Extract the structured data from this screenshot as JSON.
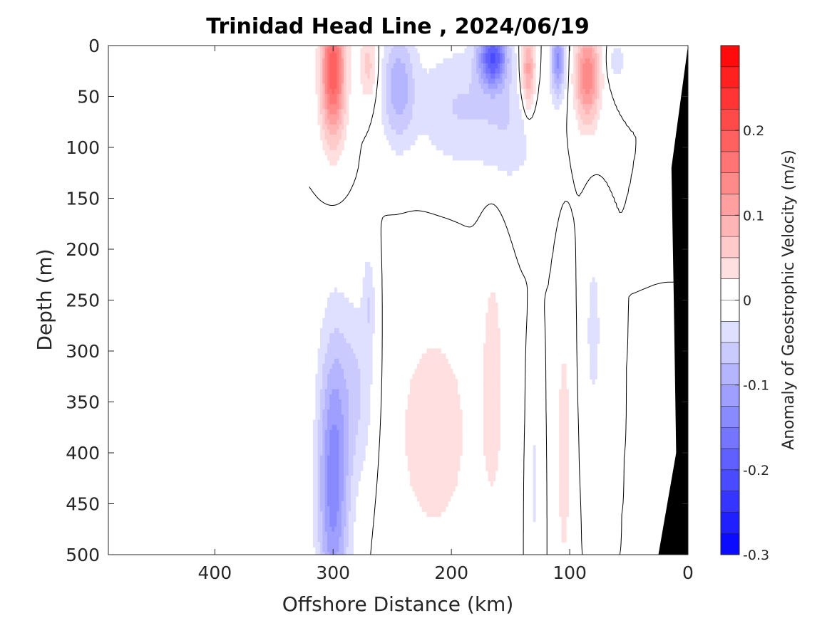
{
  "chart_data": {
    "type": "heatmap",
    "title": "Trinidad Head Line , 2024/06/19",
    "xlabel": "Offshore Distance (km)",
    "ylabel": "Depth (m)",
    "colorbar_label": "Anomaly of Geostrophic Velocity (m/s)",
    "xlim": [
      490,
      0
    ],
    "ylim": [
      500,
      0
    ],
    "x_ticks": [
      400,
      300,
      200,
      100,
      0
    ],
    "x_tick_labels": [
      "400",
      "300",
      "200",
      "100",
      "0"
    ],
    "y_ticks": [
      0,
      50,
      100,
      150,
      200,
      250,
      300,
      350,
      400,
      450,
      500
    ],
    "y_tick_labels": [
      "0",
      "50",
      "100",
      "150",
      "200",
      "250",
      "300",
      "350",
      "400",
      "450",
      "500"
    ],
    "clim": [
      -0.3,
      0.3
    ],
    "colorbar_ticks": [
      0.2,
      0.1,
      0,
      -0.1,
      -0.2,
      -0.3
    ],
    "colorbar_tick_labels": [
      "0.2",
      "0.1",
      "0",
      "-0.1",
      "-0.2",
      "-0.3"
    ],
    "colorbar_levels": 24,
    "colormap": {
      "negative": "#0000ff",
      "zero": "#ffffff",
      "positive": "#ff0000"
    },
    "data_coverage_km": [
      0,
      320
    ],
    "bathymetry_color": "#000000",
    "bathymetry": [
      [
        25,
        500
      ],
      [
        10,
        400
      ],
      [
        12,
        250
      ],
      [
        14,
        120
      ],
      [
        7,
        60
      ],
      [
        0,
        0
      ]
    ],
    "features": [
      {
        "x": 300,
        "z": 25,
        "amp": 0.2,
        "sx": 10,
        "sz": 65
      },
      {
        "x": 270,
        "z": 20,
        "amp": 0.06,
        "sx": 8,
        "sz": 35
      },
      {
        "x": 245,
        "z": 40,
        "amp": -0.09,
        "sx": 14,
        "sz": 55
      },
      {
        "x": 195,
        "z": 60,
        "amp": -0.05,
        "sx": 35,
        "sz": 60
      },
      {
        "x": 165,
        "z": 10,
        "amp": -0.19,
        "sx": 12,
        "sz": 30
      },
      {
        "x": 150,
        "z": 80,
        "amp": -0.04,
        "sx": 25,
        "sz": 60
      },
      {
        "x": 135,
        "z": 25,
        "amp": 0.12,
        "sx": 6,
        "sz": 40
      },
      {
        "x": 110,
        "z": 15,
        "amp": -0.13,
        "sx": 6,
        "sz": 35
      },
      {
        "x": 85,
        "z": 30,
        "amp": 0.15,
        "sx": 10,
        "sz": 45
      },
      {
        "x": 60,
        "z": 15,
        "amp": -0.04,
        "sx": 8,
        "sz": 20
      },
      {
        "x": 300,
        "z": 430,
        "amp": -0.14,
        "sx": 13,
        "sz": 140
      },
      {
        "x": 280,
        "z": 340,
        "amp": -0.05,
        "sx": 15,
        "sz": 90
      },
      {
        "x": 270,
        "z": 250,
        "amp": -0.04,
        "sx": 5,
        "sz": 50
      },
      {
        "x": 215,
        "z": 380,
        "amp": 0.04,
        "sx": 35,
        "sz": 120
      },
      {
        "x": 165,
        "z": 330,
        "amp": 0.035,
        "sx": 10,
        "sz": 140
      },
      {
        "x": 105,
        "z": 400,
        "amp": 0.05,
        "sx": 5,
        "sz": 110
      },
      {
        "x": 80,
        "z": 280,
        "amp": -0.04,
        "sx": 6,
        "sz": 80
      },
      {
        "x": 130,
        "z": 430,
        "amp": -0.03,
        "sx": 4,
        "sz": 90
      }
    ]
  }
}
